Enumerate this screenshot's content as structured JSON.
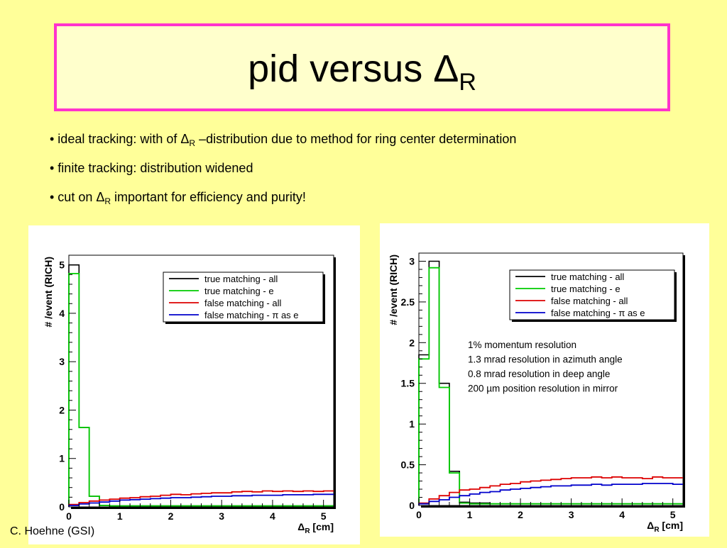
{
  "slide": {
    "title": "pid versus ",
    "title_symbol": "Δ",
    "title_sub": "R",
    "bullets": [
      {
        "pre": "• ideal tracking: with of ",
        "sym": "Δ",
        "sub": "R",
        "post": " –distribution due to method for ring center determination"
      },
      {
        "pre": "• finite tracking: distribution widened",
        "sym": "",
        "sub": "",
        "post": ""
      },
      {
        "pre": "• cut on ",
        "sym": "Δ",
        "sub": "R",
        "post": " important for efficiency and purity!"
      }
    ],
    "credit": "C. Hoehne (GSI)"
  },
  "chart_data": [
    {
      "type": "line",
      "ylabel": "# /event (RICH)",
      "xlabel_sym": "Δ",
      "xlabel_sub": "R",
      "xlabel_unit": "[cm]",
      "xlim": [
        0,
        5.2
      ],
      "ylim": [
        0,
        5.2
      ],
      "xticks": [
        "0",
        "1",
        "2",
        "3",
        "4",
        "5"
      ],
      "yticks": [
        "0",
        "1",
        "2",
        "3",
        "4",
        "5"
      ],
      "legend_position": "top-right",
      "bin_width": 0.2,
      "series": [
        {
          "name": "true matching - all",
          "color": "#000000",
          "values": [
            5.0,
            1.64,
            0.22,
            0.03,
            0.02,
            0.02,
            0.02,
            0.02,
            0.02,
            0.02,
            0.02,
            0.02,
            0.02,
            0.02,
            0.02,
            0.02,
            0.02,
            0.02,
            0.02,
            0.02,
            0.02,
            0.02,
            0.02,
            0.02,
            0.02,
            0.02
          ]
        },
        {
          "name": "true matching - e",
          "color": "#00cc00",
          "values": [
            4.82,
            1.64,
            0.22,
            0.03,
            0.02,
            0.02,
            0.02,
            0.02,
            0.02,
            0.02,
            0.02,
            0.02,
            0.02,
            0.02,
            0.02,
            0.02,
            0.02,
            0.02,
            0.02,
            0.02,
            0.02,
            0.02,
            0.02,
            0.02,
            0.02,
            0.02
          ]
        },
        {
          "name": "false matching - all",
          "color": "#dd0000",
          "values": [
            0.05,
            0.09,
            0.12,
            0.14,
            0.16,
            0.18,
            0.19,
            0.21,
            0.22,
            0.24,
            0.26,
            0.25,
            0.27,
            0.28,
            0.29,
            0.29,
            0.31,
            0.32,
            0.31,
            0.33,
            0.32,
            0.33,
            0.32,
            0.33,
            0.32,
            0.33
          ]
        },
        {
          "name": "false matching - π as e",
          "color": "#0000cc",
          "values": [
            0.03,
            0.06,
            0.08,
            0.1,
            0.12,
            0.14,
            0.15,
            0.16,
            0.17,
            0.18,
            0.19,
            0.19,
            0.2,
            0.21,
            0.22,
            0.22,
            0.23,
            0.23,
            0.24,
            0.24,
            0.24,
            0.25,
            0.25,
            0.25,
            0.26,
            0.26
          ]
        }
      ]
    },
    {
      "type": "line",
      "ylabel": "# /event (RICH)",
      "xlabel_sym": "Δ",
      "xlabel_sub": "R",
      "xlabel_unit": "[cm]",
      "xlim": [
        0,
        5.2
      ],
      "ylim": [
        0,
        3.1
      ],
      "xticks": [
        "0",
        "1",
        "2",
        "3",
        "4",
        "5"
      ],
      "yticks": [
        "0",
        "0.5",
        "1",
        "1.5",
        "2",
        "2.5",
        "3"
      ],
      "legend_position": "top-right",
      "bin_width": 0.2,
      "annotations": [
        "1% momentum resolution",
        "1.3 mrad resolution in azimuth angle",
        "0.8 mrad resolution in deep angle",
        "200 µm position resolution in mirror"
      ],
      "series": [
        {
          "name": "true matching - all",
          "color": "#000000",
          "values": [
            1.85,
            3.0,
            1.5,
            0.42,
            0.04,
            0.03,
            0.03,
            0.02,
            0.02,
            0.02,
            0.02,
            0.02,
            0.02,
            0.02,
            0.02,
            0.02,
            0.02,
            0.02,
            0.02,
            0.02,
            0.02,
            0.02,
            0.02,
            0.02,
            0.02,
            0.02
          ]
        },
        {
          "name": "true matching - e",
          "color": "#00cc00",
          "values": [
            1.8,
            2.92,
            1.45,
            0.4,
            0.03,
            0.02,
            0.02,
            0.02,
            0.02,
            0.02,
            0.02,
            0.02,
            0.02,
            0.02,
            0.02,
            0.02,
            0.02,
            0.02,
            0.02,
            0.02,
            0.02,
            0.02,
            0.02,
            0.02,
            0.02,
            0.02
          ]
        },
        {
          "name": "false matching - all",
          "color": "#dd0000",
          "values": [
            0.03,
            0.08,
            0.12,
            0.16,
            0.19,
            0.2,
            0.22,
            0.24,
            0.26,
            0.27,
            0.29,
            0.3,
            0.31,
            0.32,
            0.33,
            0.34,
            0.34,
            0.35,
            0.34,
            0.35,
            0.34,
            0.34,
            0.33,
            0.35,
            0.34,
            0.34
          ]
        },
        {
          "name": "false matching - π as e",
          "color": "#0000cc",
          "values": [
            0.02,
            0.05,
            0.07,
            0.1,
            0.12,
            0.14,
            0.16,
            0.17,
            0.19,
            0.2,
            0.21,
            0.22,
            0.23,
            0.24,
            0.24,
            0.25,
            0.25,
            0.26,
            0.25,
            0.26,
            0.26,
            0.26,
            0.27,
            0.27,
            0.27,
            0.26
          ]
        }
      ]
    }
  ]
}
